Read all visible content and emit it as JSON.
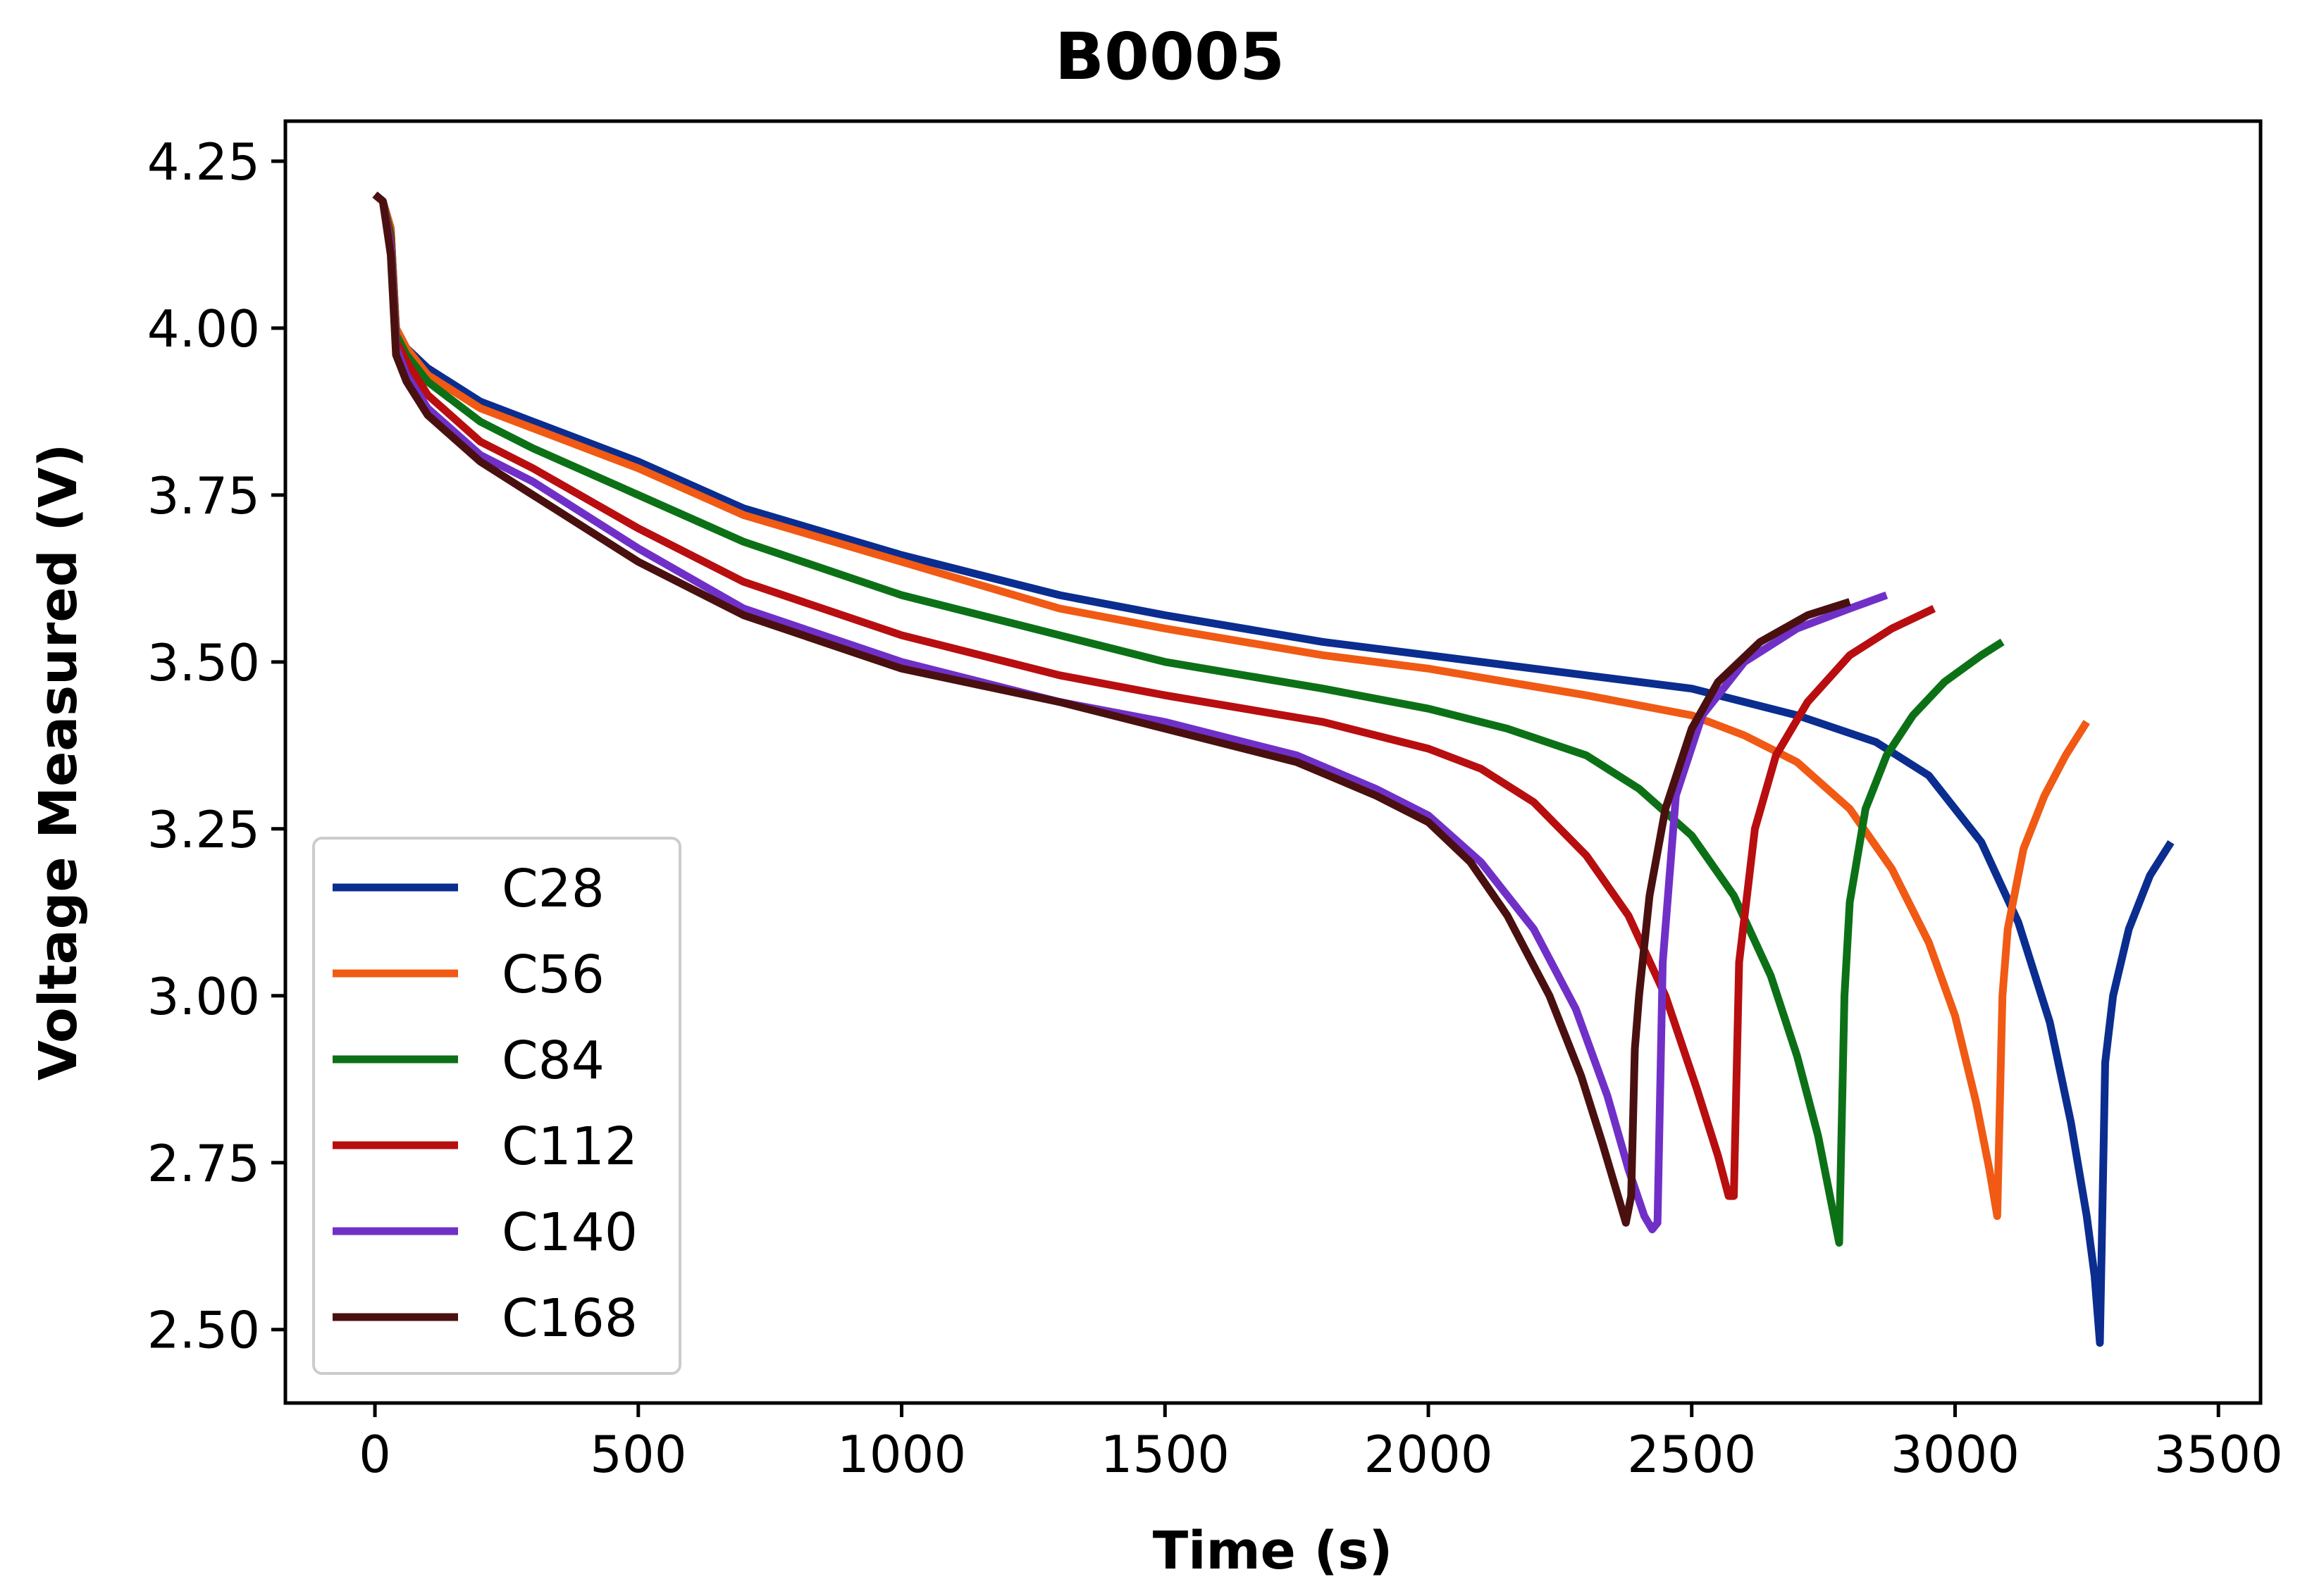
{
  "chart_data": {
    "type": "line",
    "title": "B0005",
    "xlabel": "Time (s)",
    "ylabel": "Voltage Measured (V)",
    "xlim": [
      -170,
      3580
    ],
    "ylim": [
      2.39,
      4.31
    ],
    "xticks": [
      0,
      500,
      1000,
      1500,
      2000,
      2500,
      3000,
      3500
    ],
    "yticks": [
      2.5,
      2.75,
      3.0,
      3.25,
      3.5,
      3.75,
      4.0,
      4.25
    ],
    "xtick_labels": [
      "0",
      "500",
      "1000",
      "1500",
      "2000",
      "2500",
      "3000",
      "3500"
    ],
    "ytick_labels": [
      "2.50",
      "2.75",
      "3.00",
      "3.25",
      "3.50",
      "3.75",
      "4.00",
      "4.25"
    ],
    "grid": false,
    "legend_position": "lower-left",
    "series": [
      {
        "name": "C28",
        "color": "#0a2d8f",
        "x": [
          0,
          15,
          30,
          40,
          60,
          100,
          200,
          300,
          500,
          700,
          1000,
          1300,
          1500,
          1800,
          2000,
          2300,
          2500,
          2700,
          2850,
          2950,
          3050,
          3120,
          3180,
          3220,
          3250,
          3265,
          3275,
          3285,
          3300,
          3330,
          3370,
          3410
        ],
        "y": [
          4.2,
          4.19,
          4.15,
          4.0,
          3.97,
          3.94,
          3.89,
          3.86,
          3.8,
          3.73,
          3.66,
          3.6,
          3.57,
          3.53,
          3.51,
          3.48,
          3.46,
          3.42,
          3.38,
          3.33,
          3.23,
          3.11,
          2.96,
          2.81,
          2.67,
          2.58,
          2.48,
          2.9,
          3.0,
          3.1,
          3.18,
          3.23
        ]
      },
      {
        "name": "C56",
        "color": "#f05a14",
        "x": [
          0,
          15,
          30,
          40,
          60,
          100,
          200,
          300,
          500,
          700,
          1000,
          1300,
          1500,
          1800,
          2000,
          2300,
          2500,
          2600,
          2700,
          2800,
          2880,
          2950,
          3000,
          3040,
          3065,
          3080,
          3090,
          3100,
          3130,
          3170,
          3210,
          3250
        ],
        "y": [
          4.2,
          4.19,
          4.15,
          4.0,
          3.97,
          3.93,
          3.88,
          3.85,
          3.79,
          3.72,
          3.65,
          3.58,
          3.55,
          3.51,
          3.49,
          3.45,
          3.42,
          3.39,
          3.35,
          3.28,
          3.19,
          3.08,
          2.97,
          2.84,
          2.74,
          2.67,
          3.0,
          3.1,
          3.22,
          3.3,
          3.36,
          3.41
        ]
      },
      {
        "name": "C84",
        "color": "#0c7116",
        "x": [
          0,
          15,
          30,
          40,
          60,
          100,
          200,
          300,
          500,
          700,
          1000,
          1300,
          1500,
          1800,
          2000,
          2150,
          2300,
          2400,
          2500,
          2580,
          2650,
          2700,
          2740,
          2765,
          2780,
          2790,
          2800,
          2830,
          2870,
          2920,
          2980,
          3050,
          3090
        ],
        "y": [
          4.2,
          4.19,
          4.14,
          3.99,
          3.96,
          3.92,
          3.86,
          3.82,
          3.75,
          3.68,
          3.6,
          3.54,
          3.5,
          3.46,
          3.43,
          3.4,
          3.36,
          3.31,
          3.24,
          3.15,
          3.03,
          2.91,
          2.79,
          2.69,
          2.63,
          3.0,
          3.14,
          3.28,
          3.36,
          3.42,
          3.47,
          3.51,
          3.53
        ]
      },
      {
        "name": "C112",
        "color": "#b80e10",
        "x": [
          0,
          15,
          30,
          40,
          60,
          100,
          200,
          300,
          500,
          700,
          1000,
          1300,
          1500,
          1800,
          2000,
          2100,
          2200,
          2300,
          2380,
          2450,
          2510,
          2550,
          2570,
          2580,
          2590,
          2620,
          2660,
          2720,
          2800,
          2880,
          2960
        ],
        "y": [
          4.2,
          4.19,
          4.13,
          3.98,
          3.95,
          3.9,
          3.83,
          3.79,
          3.7,
          3.62,
          3.54,
          3.48,
          3.45,
          3.41,
          3.37,
          3.34,
          3.29,
          3.21,
          3.12,
          3.0,
          2.86,
          2.76,
          2.7,
          2.7,
          3.05,
          3.25,
          3.36,
          3.44,
          3.51,
          3.55,
          3.58
        ]
      },
      {
        "name": "C140",
        "color": "#7030c8",
        "x": [
          0,
          15,
          30,
          40,
          60,
          100,
          200,
          300,
          500,
          700,
          1000,
          1300,
          1500,
          1750,
          1900,
          2000,
          2100,
          2200,
          2280,
          2340,
          2380,
          2410,
          2425,
          2435,
          2445,
          2470,
          2520,
          2600,
          2700,
          2800,
          2870
        ],
        "y": [
          4.2,
          4.19,
          4.12,
          3.97,
          3.93,
          3.88,
          3.81,
          3.77,
          3.67,
          3.58,
          3.5,
          3.44,
          3.41,
          3.36,
          3.31,
          3.27,
          3.2,
          3.1,
          2.98,
          2.85,
          2.74,
          2.67,
          2.65,
          2.66,
          3.05,
          3.3,
          3.42,
          3.5,
          3.55,
          3.58,
          3.6
        ]
      },
      {
        "name": "C168",
        "color": "#4a1010",
        "x": [
          0,
          15,
          30,
          40,
          60,
          100,
          200,
          300,
          500,
          700,
          1000,
          1300,
          1500,
          1750,
          1900,
          2000,
          2080,
          2150,
          2230,
          2290,
          2330,
          2360,
          2375,
          2385,
          2392,
          2400,
          2420,
          2450,
          2500,
          2550,
          2630,
          2720,
          2800
        ],
        "y": [
          4.2,
          4.19,
          4.11,
          3.96,
          3.92,
          3.87,
          3.8,
          3.75,
          3.65,
          3.57,
          3.49,
          3.44,
          3.4,
          3.35,
          3.3,
          3.26,
          3.2,
          3.12,
          3.0,
          2.88,
          2.78,
          2.7,
          2.66,
          2.7,
          2.92,
          3.0,
          3.15,
          3.28,
          3.4,
          3.47,
          3.53,
          3.57,
          3.59
        ]
      }
    ]
  }
}
